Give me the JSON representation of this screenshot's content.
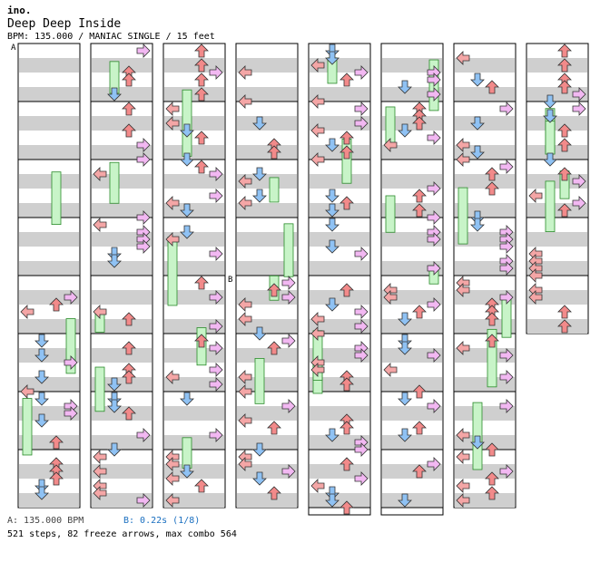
{
  "header": {
    "artist": "ino.",
    "title": "Deep Deep Inside",
    "meta": "BPM: 135.000 / MANIAC SINGLE / 15 feet"
  },
  "markers": {
    "a": "A",
    "b": "B"
  },
  "footer": {
    "bpm_marker": "A: 135.000 BPM",
    "stop_marker": "B: 0.22s (1/8)",
    "stats": "521 steps, 82 freeze arrows, max combo 564"
  },
  "colors": {
    "left": "#f4a6a6",
    "down": "#8fc2f4",
    "up": "#f28a8a",
    "right": "#f2b8f2",
    "freeze": "#c8f4c8",
    "band": "#cfcfcf"
  },
  "icons": [
    "left-arrow-icon",
    "down-arrow-icon",
    "up-arrow-icon",
    "right-arrow-icon",
    "freeze-arrow-icon"
  ]
}
